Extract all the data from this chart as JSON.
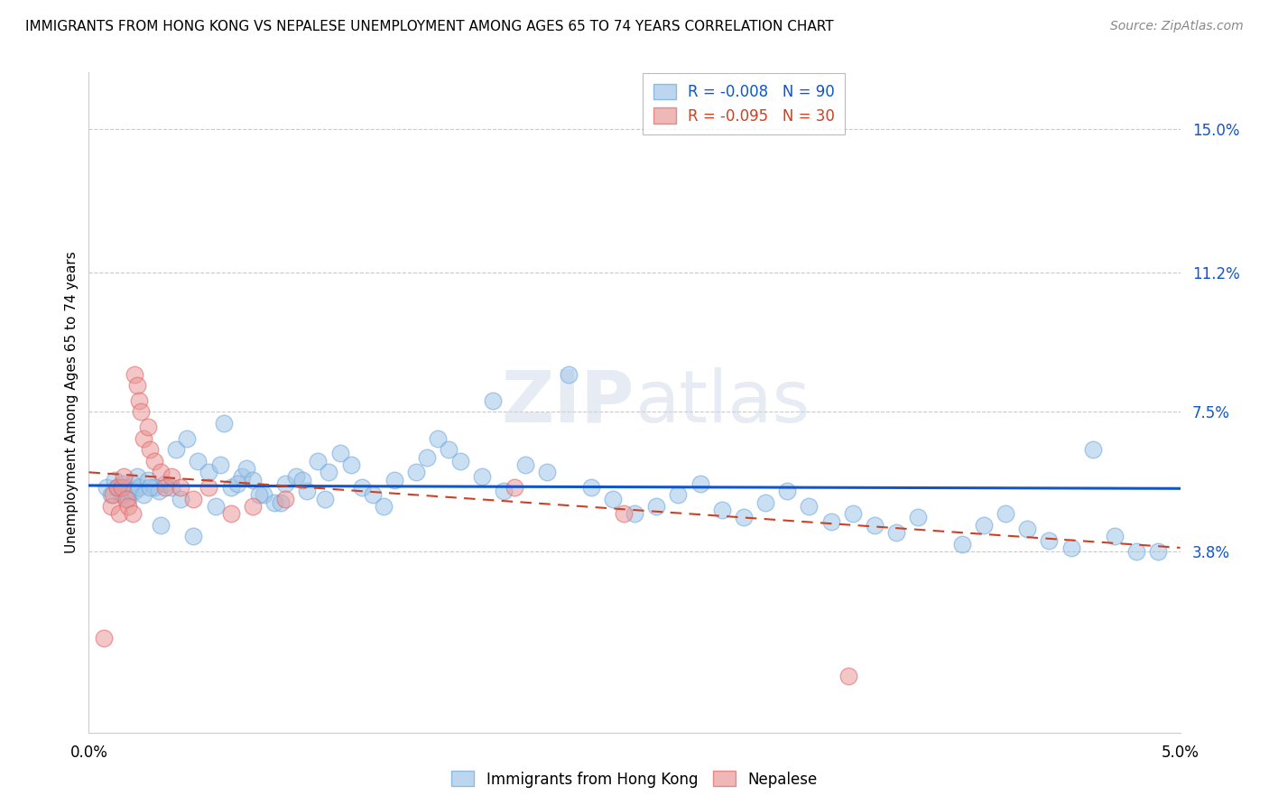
{
  "title": "IMMIGRANTS FROM HONG KONG VS NEPALESE UNEMPLOYMENT AMONG AGES 65 TO 74 YEARS CORRELATION CHART",
  "source": "Source: ZipAtlas.com",
  "ylabel": "Unemployment Among Ages 65 to 74 years",
  "ytick_labels": [
    "15.0%",
    "11.2%",
    "7.5%",
    "3.8%"
  ],
  "ytick_values": [
    15.0,
    11.2,
    7.5,
    3.8
  ],
  "xlim": [
    0.0,
    5.0
  ],
  "ylim": [
    -1.0,
    16.5
  ],
  "legend_r1": "R = -0.008",
  "legend_n1": "N = 90",
  "legend_r2": "R = -0.095",
  "legend_n2": "N = 30",
  "color_blue": "#9fc5e8",
  "color_pink": "#ea9999",
  "color_line_blue": "#1155cc",
  "color_line_pink": "#cc4125",
  "blue_x": [
    0.08,
    0.1,
    0.12,
    0.13,
    0.14,
    0.15,
    0.16,
    0.17,
    0.18,
    0.19,
    0.2,
    0.21,
    0.22,
    0.23,
    0.25,
    0.27,
    0.3,
    0.32,
    0.35,
    0.38,
    0.4,
    0.42,
    0.45,
    0.5,
    0.55,
    0.6,
    0.62,
    0.65,
    0.7,
    0.72,
    0.75,
    0.8,
    0.85,
    0.9,
    0.95,
    1.0,
    1.05,
    1.1,
    1.15,
    1.2,
    1.25,
    1.3,
    1.35,
    1.4,
    1.5,
    1.55,
    1.6,
    1.65,
    1.7,
    1.8,
    1.85,
    1.9,
    2.0,
    2.1,
    2.2,
    2.3,
    2.4,
    2.5,
    2.6,
    2.7,
    2.8,
    2.9,
    3.0,
    3.1,
    3.2,
    3.3,
    3.4,
    3.5,
    3.6,
    3.7,
    3.8,
    4.0,
    4.1,
    4.2,
    4.3,
    4.4,
    4.5,
    4.6,
    4.7,
    4.8,
    4.9,
    0.28,
    0.33,
    0.48,
    0.58,
    0.68,
    0.78,
    0.88,
    0.98,
    1.08
  ],
  "blue_y": [
    5.5,
    5.3,
    5.7,
    5.5,
    5.4,
    5.6,
    5.3,
    5.5,
    5.2,
    5.4,
    5.6,
    5.4,
    5.8,
    5.5,
    5.3,
    5.7,
    5.5,
    5.4,
    5.6,
    5.5,
    6.5,
    5.2,
    6.8,
    6.2,
    5.9,
    6.1,
    7.2,
    5.5,
    5.8,
    6.0,
    5.7,
    5.3,
    5.1,
    5.6,
    5.8,
    5.4,
    6.2,
    5.9,
    6.4,
    6.1,
    5.5,
    5.3,
    5.0,
    5.7,
    5.9,
    6.3,
    6.8,
    6.5,
    6.2,
    5.8,
    7.8,
    5.4,
    6.1,
    5.9,
    8.5,
    5.5,
    5.2,
    4.8,
    5.0,
    5.3,
    5.6,
    4.9,
    4.7,
    5.1,
    5.4,
    5.0,
    4.6,
    4.8,
    4.5,
    4.3,
    4.7,
    4.0,
    4.5,
    4.8,
    4.4,
    4.1,
    3.9,
    6.5,
    4.2,
    3.8,
    3.8,
    5.5,
    4.5,
    4.2,
    5.0,
    5.6,
    5.3,
    5.1,
    5.7,
    5.2
  ],
  "pink_x": [
    0.07,
    0.1,
    0.11,
    0.13,
    0.14,
    0.15,
    0.16,
    0.17,
    0.18,
    0.2,
    0.21,
    0.22,
    0.23,
    0.24,
    0.25,
    0.27,
    0.28,
    0.3,
    0.33,
    0.35,
    0.38,
    0.42,
    0.48,
    0.55,
    0.65,
    0.75,
    0.9,
    1.95,
    2.45,
    3.48
  ],
  "pink_y": [
    1.5,
    5.0,
    5.3,
    5.5,
    4.8,
    5.5,
    5.8,
    5.2,
    5.0,
    4.8,
    8.5,
    8.2,
    7.8,
    7.5,
    6.8,
    7.1,
    6.5,
    6.2,
    5.9,
    5.5,
    5.8,
    5.5,
    5.2,
    5.5,
    4.8,
    5.0,
    5.2,
    5.5,
    4.8,
    0.5
  ],
  "blue_line_x": [
    0.0,
    5.0
  ],
  "blue_line_y": [
    5.55,
    5.47
  ],
  "pink_line_x": [
    0.0,
    5.0
  ],
  "pink_line_y": [
    5.9,
    3.9
  ]
}
